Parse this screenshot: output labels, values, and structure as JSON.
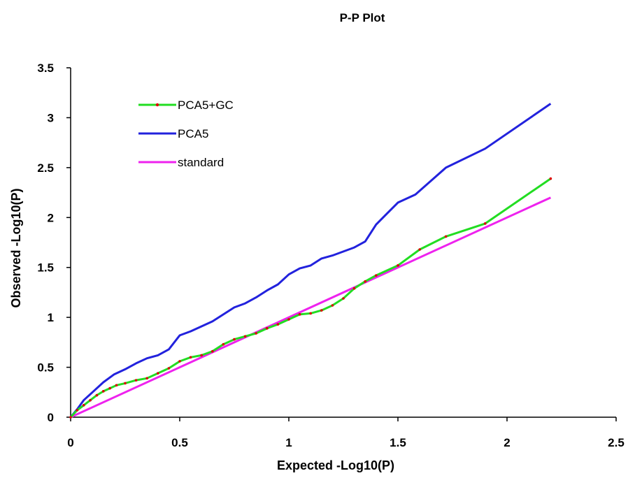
{
  "chart_data": {
    "type": "line",
    "title": "P-P Plot",
    "xlabel": "Expected -Log10(P)",
    "ylabel": "Observed -Log10(P)",
    "xlim": [
      0,
      2.5
    ],
    "ylim": [
      0,
      3.5
    ],
    "xticks": [
      "0",
      "0.5",
      "1",
      "1.5",
      "2",
      "2.5"
    ],
    "yticks": [
      "0",
      "0.5",
      "1",
      "1.5",
      "2",
      "2.5",
      "3",
      "3.5"
    ],
    "grid": false,
    "legend_position": "top-left",
    "series": [
      {
        "name": "PCA5+GC",
        "color": "#22dd22",
        "marker_color": "#dd0000",
        "x": [
          0.0,
          0.03,
          0.06,
          0.09,
          0.12,
          0.15,
          0.18,
          0.21,
          0.25,
          0.3,
          0.35,
          0.4,
          0.45,
          0.5,
          0.55,
          0.6,
          0.65,
          0.7,
          0.75,
          0.8,
          0.85,
          0.9,
          0.95,
          1.0,
          1.05,
          1.1,
          1.15,
          1.2,
          1.25,
          1.3,
          1.35,
          1.4,
          1.5,
          1.6,
          1.72,
          1.9,
          2.2
        ],
        "y": [
          0.0,
          0.07,
          0.12,
          0.17,
          0.22,
          0.26,
          0.29,
          0.32,
          0.34,
          0.37,
          0.39,
          0.44,
          0.49,
          0.56,
          0.6,
          0.62,
          0.66,
          0.73,
          0.78,
          0.81,
          0.84,
          0.89,
          0.93,
          0.98,
          1.03,
          1.04,
          1.07,
          1.12,
          1.19,
          1.29,
          1.36,
          1.42,
          1.52,
          1.68,
          1.81,
          1.94,
          2.39
        ]
      },
      {
        "name": "PCA5",
        "color": "#2222dd",
        "x": [
          0.0,
          0.03,
          0.06,
          0.1,
          0.15,
          0.2,
          0.25,
          0.3,
          0.35,
          0.4,
          0.45,
          0.5,
          0.55,
          0.6,
          0.65,
          0.7,
          0.75,
          0.8,
          0.85,
          0.9,
          0.95,
          1.0,
          1.05,
          1.1,
          1.15,
          1.2,
          1.25,
          1.3,
          1.35,
          1.4,
          1.45,
          1.5,
          1.58,
          1.72,
          1.9,
          2.2
        ],
        "y": [
          0.0,
          0.08,
          0.17,
          0.25,
          0.35,
          0.43,
          0.48,
          0.54,
          0.59,
          0.62,
          0.68,
          0.82,
          0.86,
          0.91,
          0.96,
          1.03,
          1.1,
          1.14,
          1.2,
          1.27,
          1.33,
          1.43,
          1.49,
          1.52,
          1.59,
          1.62,
          1.66,
          1.7,
          1.76,
          1.93,
          2.04,
          2.15,
          2.23,
          2.5,
          2.69,
          3.14
        ]
      },
      {
        "name": "standard",
        "color": "#ee22ee",
        "x": [
          0.0,
          2.2
        ],
        "y": [
          0.0,
          2.2
        ]
      }
    ]
  }
}
